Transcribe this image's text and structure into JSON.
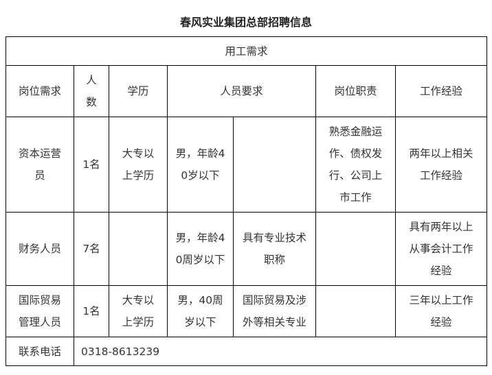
{
  "title": "春风实业集团总部招聘信息",
  "section_header": "用工需求",
  "headers": [
    "岗位需求",
    "人\n数",
    "学历",
    "人员要求",
    "岗位职责",
    "工作经验"
  ],
  "rows": [
    {
      "position": "资本运营\n员",
      "count": "1名",
      "education": "大专以\n上学历",
      "requirement_a": "男，年龄4\n0岁以下",
      "requirement_b": "",
      "duties": "熟悉金融运\n作、债权发\n行、公司上\n市工作",
      "experience": "两年以上相关\n工作经验"
    },
    {
      "position": "财务人员",
      "count": "7名",
      "education": "",
      "requirement_a": "男，年龄4\n0周岁以下",
      "requirement_b": "具有专业技术\n职称",
      "duties": "",
      "experience": "具有两年以上\n从事会计工作\n经验"
    },
    {
      "position": "国际贸易\n管理人员",
      "count": "1名",
      "education": "大专以\n上学历",
      "requirement_a": "男，40周\n岁以下",
      "requirement_b": "国际贸易及涉\n外等相关专业",
      "duties": "",
      "experience": "三年以上工作\n经验"
    }
  ],
  "contact": {
    "label": "联系电话",
    "phone": "0318-8613239"
  }
}
